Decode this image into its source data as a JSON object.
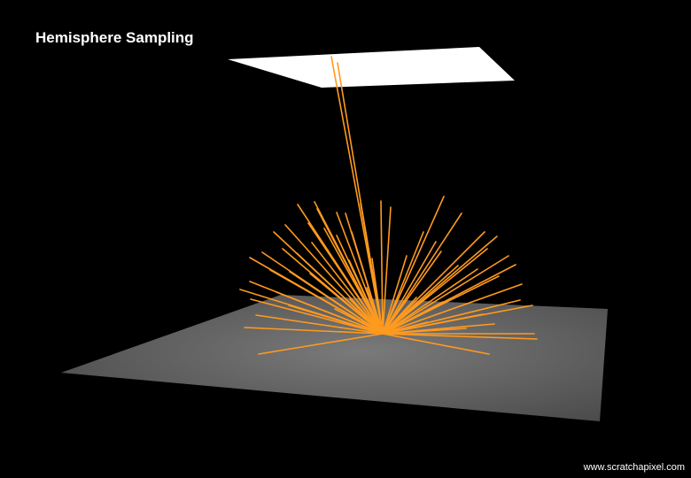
{
  "title": "Hemisphere Sampling",
  "watermark": "www.scratchapixel.com",
  "colors": {
    "background": "#000000",
    "ray": "#FF9A1F",
    "light_plane": "#FFFFFF",
    "ground_center": "#7A7A7A",
    "ground_edge": "#4A4A4A"
  }
}
